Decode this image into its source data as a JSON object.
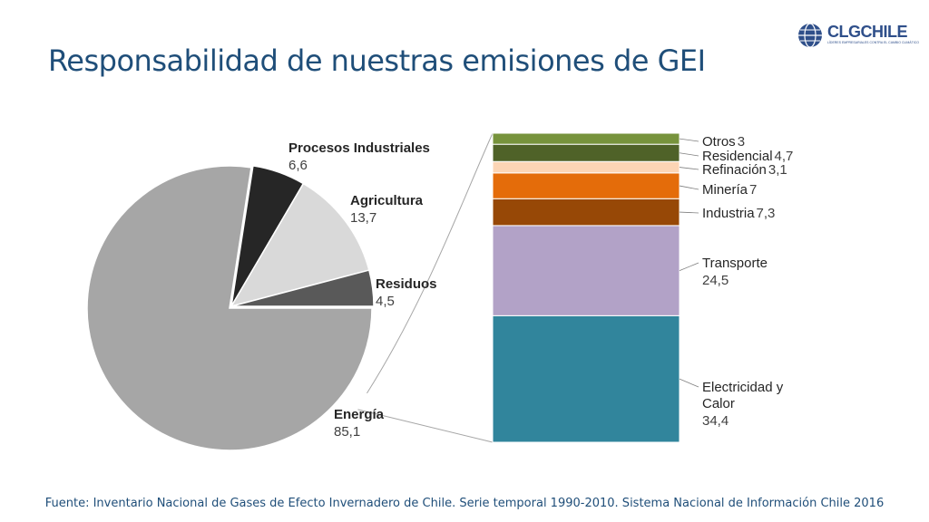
{
  "slide": {
    "title": "Responsabilidad de nuestras emisiones de GEI",
    "source": "Fuente: Inventario Nacional de Gases de Efecto Invernadero de Chile. Serie temporal 1990-2010. Sistema Nacional de Información Chile 2016"
  },
  "logo": {
    "text": "CLGCHILE",
    "subtext": "LÍDERES EMPRESARIALES CONTRA EL CAMBIO CLIMÁTICO",
    "icon": "globe-icon"
  },
  "chart_data": [
    {
      "type": "pie",
      "categories": [
        "Energía",
        "Procesos Industriales",
        "Agricultura",
        "Residuos"
      ],
      "values": [
        85.1,
        6.6,
        13.7,
        4.5
      ],
      "value_labels": [
        "85,1",
        "6,6",
        "13,7",
        "4,5"
      ],
      "colors": [
        "#a6a6a6",
        "#262626",
        "#d9d9d9",
        "#595959"
      ],
      "exploded": "Energía"
    },
    {
      "type": "bar",
      "stacked": true,
      "categories": [
        "Electricidad y Calor",
        "Transporte",
        "Industria",
        "Minería",
        "Refinación",
        "Residencial",
        "Otros"
      ],
      "values": [
        34.4,
        24.5,
        7.3,
        7,
        3.1,
        4.7,
        3
      ],
      "value_labels": [
        "34,4",
        "24,5",
        "7,3",
        "7",
        "3,1",
        "4,7",
        "3"
      ],
      "colors": [
        "#31859c",
        "#b2a2c7",
        "#974806",
        "#e46c0a",
        "#fcd5b5",
        "#4f6228",
        "#77933c"
      ]
    }
  ]
}
